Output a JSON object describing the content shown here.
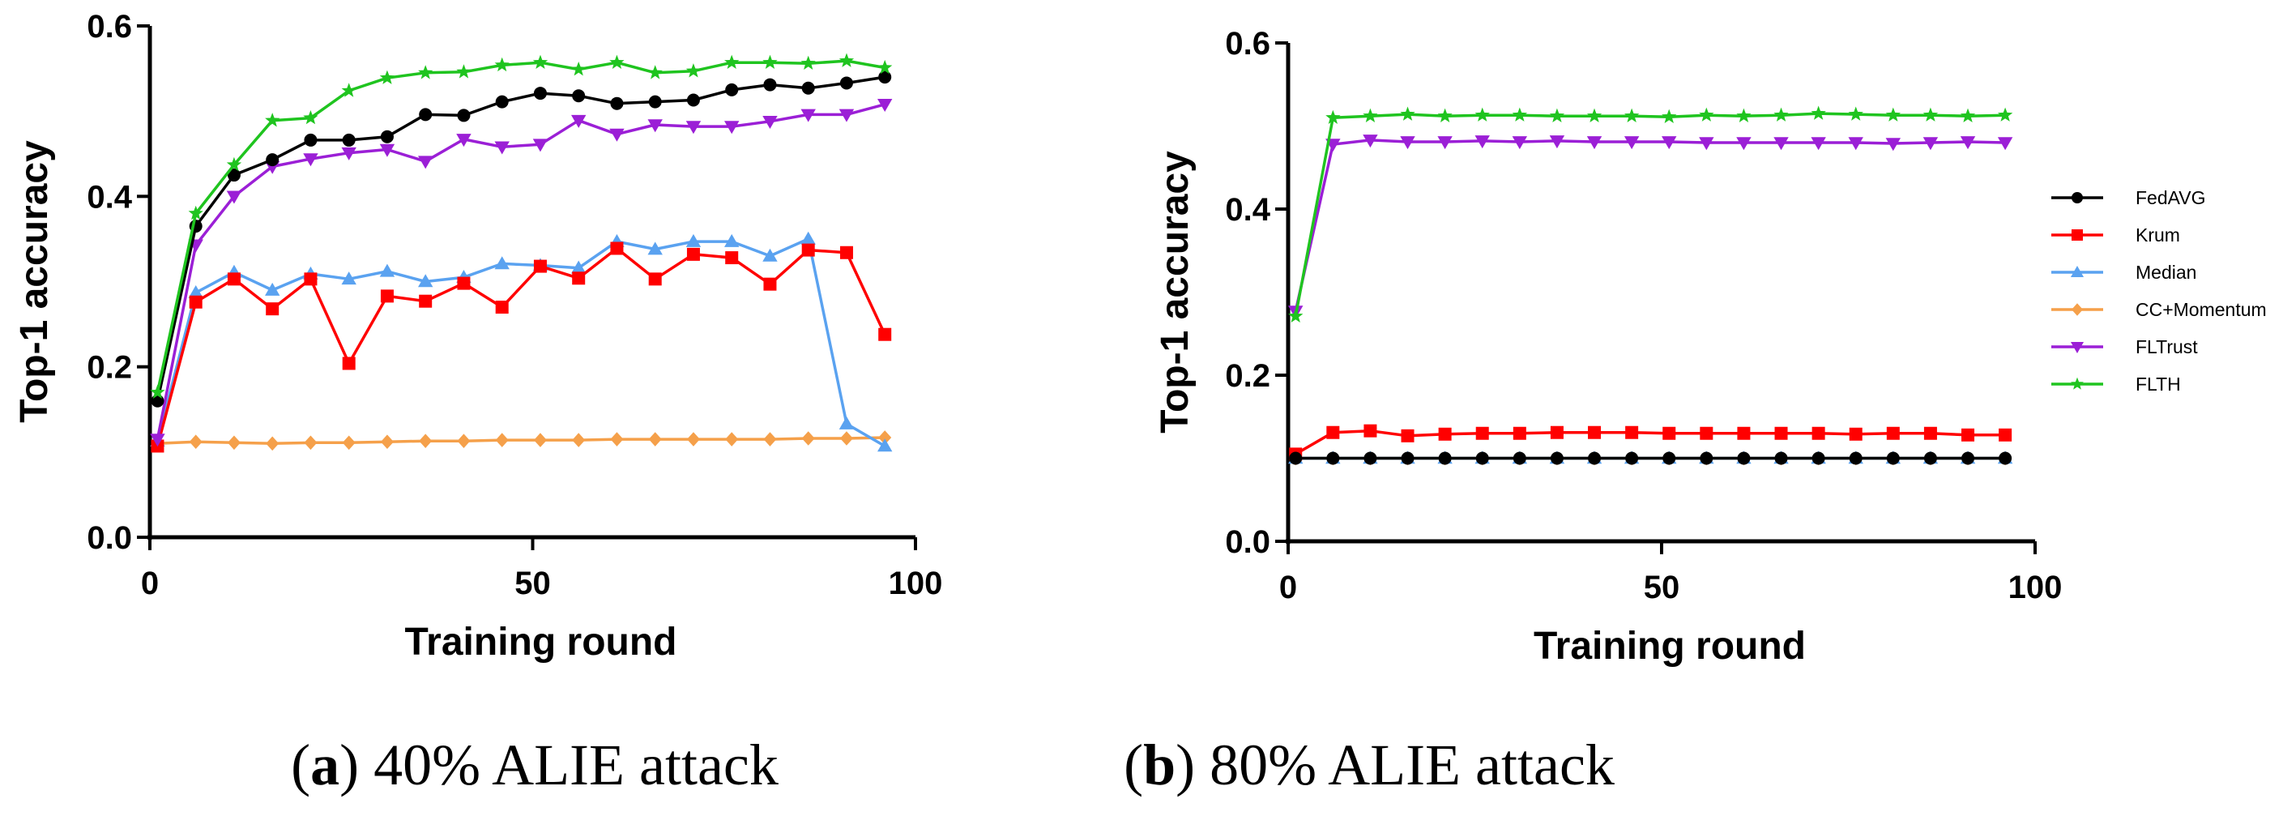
{
  "series_styles": [
    {
      "name": "FedAVG",
      "color": "#000000",
      "marker": "circle"
    },
    {
      "name": "Krum",
      "color": "#ff0000",
      "marker": "square"
    },
    {
      "name": "Median",
      "color": "#5aa2f0",
      "marker": "triangle-up"
    },
    {
      "name": "CC+Momentum",
      "color": "#f5a04a",
      "marker": "diamond"
    },
    {
      "name": "FLTrust",
      "color": "#9b1fd6",
      "marker": "triangle-down"
    },
    {
      "name": "FLTH",
      "color": "#1fc41f",
      "marker": "star"
    }
  ],
  "chart_data": [
    {
      "type": "line",
      "panel": "a",
      "caption_letter": "a",
      "caption_text": "40% ALIE attack",
      "title": "",
      "xlabel": "Training round",
      "ylabel": "Top-1 accuracy",
      "xlim": [
        0,
        100
      ],
      "ylim": [
        0,
        0.6
      ],
      "xticks": [
        0,
        50,
        100
      ],
      "yticks": [
        0.0,
        0.2,
        0.4,
        0.6
      ],
      "ytick_labels": [
        "0.0",
        "0.2",
        "0.4",
        "0.6"
      ],
      "grid": false,
      "legend": "none",
      "x": [
        1,
        6,
        11,
        16,
        21,
        26,
        31,
        36,
        41,
        46,
        51,
        56,
        61,
        66,
        71,
        76,
        81,
        86,
        91,
        96
      ],
      "series": [
        {
          "name": "FedAVG",
          "values": [
            0.16,
            0.365,
            0.425,
            0.443,
            0.466,
            0.466,
            0.47,
            0.496,
            0.495,
            0.511,
            0.521,
            0.518,
            0.509,
            0.511,
            0.513,
            0.525,
            0.531,
            0.527,
            0.533,
            0.54
          ]
        },
        {
          "name": "Krum",
          "values": [
            0.107,
            0.276,
            0.303,
            0.268,
            0.303,
            0.204,
            0.283,
            0.277,
            0.298,
            0.27,
            0.318,
            0.304,
            0.339,
            0.303,
            0.332,
            0.328,
            0.297,
            0.337,
            0.334,
            0.238
          ]
        },
        {
          "name": "Median",
          "values": [
            0.113,
            0.287,
            0.311,
            0.29,
            0.309,
            0.303,
            0.312,
            0.3,
            0.305,
            0.321,
            0.319,
            0.316,
            0.347,
            0.338,
            0.347,
            0.347,
            0.33,
            0.35,
            0.133,
            0.107
          ]
        },
        {
          "name": "CC+Momentum",
          "values": [
            0.11,
            0.112,
            0.111,
            0.11,
            0.111,
            0.111,
            0.112,
            0.113,
            0.113,
            0.114,
            0.114,
            0.114,
            0.115,
            0.115,
            0.115,
            0.115,
            0.115,
            0.116,
            0.116,
            0.117
          ]
        },
        {
          "name": "FLTrust",
          "values": [
            0.115,
            0.343,
            0.4,
            0.435,
            0.444,
            0.451,
            0.455,
            0.441,
            0.467,
            0.458,
            0.461,
            0.489,
            0.473,
            0.484,
            0.482,
            0.482,
            0.488,
            0.496,
            0.496,
            0.508
          ]
        },
        {
          "name": "FLTH",
          "values": [
            0.17,
            0.38,
            0.437,
            0.489,
            0.492,
            0.524,
            0.539,
            0.545,
            0.546,
            0.554,
            0.557,
            0.549,
            0.557,
            0.545,
            0.547,
            0.557,
            0.557,
            0.556,
            0.559,
            0.551
          ]
        }
      ]
    },
    {
      "type": "line",
      "panel": "b",
      "caption_letter": "b",
      "caption_text": "80% ALIE attack",
      "title": "",
      "xlabel": "Training round",
      "ylabel": "Top-1 accuracy",
      "xlim": [
        0,
        100
      ],
      "ylim": [
        0,
        0.6
      ],
      "xticks": [
        0,
        50,
        100
      ],
      "yticks": [
        0.0,
        0.2,
        0.4,
        0.6
      ],
      "ytick_labels": [
        "0.0",
        "0.2",
        "0.4",
        "0.6"
      ],
      "grid": false,
      "legend": "right",
      "x": [
        1,
        6,
        11,
        16,
        21,
        26,
        31,
        36,
        41,
        46,
        51,
        56,
        61,
        66,
        71,
        76,
        81,
        86,
        91,
        96
      ],
      "series": [
        {
          "name": "FedAVG",
          "values": [
            0.1,
            0.1,
            0.1,
            0.1,
            0.1,
            0.1,
            0.1,
            0.1,
            0.1,
            0.1,
            0.1,
            0.1,
            0.1,
            0.1,
            0.1,
            0.1,
            0.1,
            0.1,
            0.1,
            0.1
          ]
        },
        {
          "name": "Krum",
          "values": [
            0.105,
            0.131,
            0.133,
            0.127,
            0.129,
            0.13,
            0.13,
            0.131,
            0.131,
            0.131,
            0.13,
            0.13,
            0.13,
            0.13,
            0.13,
            0.129,
            0.13,
            0.13,
            0.128,
            0.128
          ]
        },
        {
          "name": "Median",
          "values": [
            0.1,
            0.1,
            0.1,
            0.1,
            0.1,
            0.1,
            0.1,
            0.1,
            0.1,
            0.1,
            0.1,
            0.1,
            0.1,
            0.1,
            0.1,
            0.1,
            0.1,
            0.1,
            0.1,
            0.1
          ]
        },
        {
          "name": "CC+Momentum",
          "values": [
            0.1,
            0.1,
            0.1,
            0.1,
            0.1,
            0.1,
            0.1,
            0.1,
            0.1,
            0.1,
            0.1,
            0.1,
            0.1,
            0.1,
            0.1,
            0.1,
            0.1,
            0.1,
            0.1,
            0.1
          ]
        },
        {
          "name": "FLTrust",
          "values": [
            0.277,
            0.478,
            0.483,
            0.481,
            0.481,
            0.482,
            0.481,
            0.482,
            0.481,
            0.481,
            0.481,
            0.48,
            0.48,
            0.48,
            0.48,
            0.48,
            0.479,
            0.48,
            0.481,
            0.48
          ]
        },
        {
          "name": "FLTH",
          "values": [
            0.271,
            0.51,
            0.512,
            0.514,
            0.512,
            0.513,
            0.513,
            0.512,
            0.512,
            0.512,
            0.511,
            0.513,
            0.512,
            0.513,
            0.515,
            0.514,
            0.513,
            0.513,
            0.512,
            0.513
          ]
        }
      ]
    }
  ]
}
